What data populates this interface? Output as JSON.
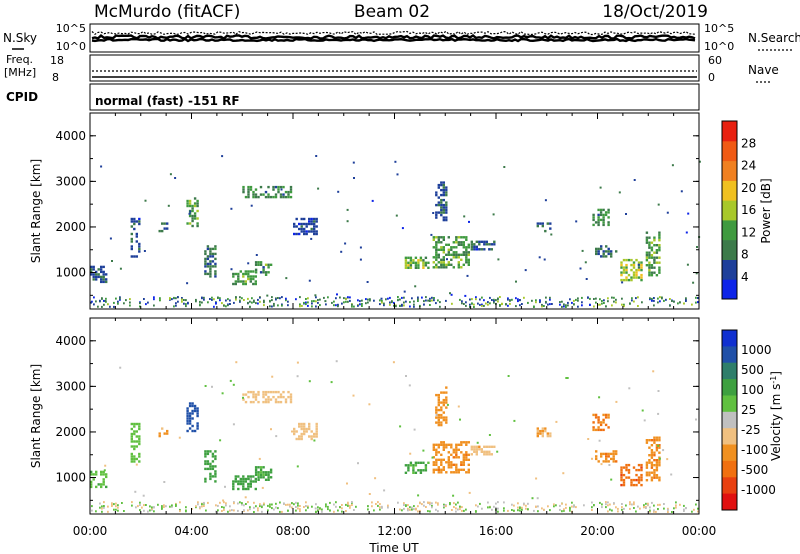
{
  "header": {
    "station": "McMurdo (fitACF)",
    "beam": "Beam 02",
    "date": "18/Oct/2019"
  },
  "left_labels": {
    "nsky": "N.Sky",
    "freq": "Freq.",
    "freq_unit": "[MHz]",
    "cpid": "CPID"
  },
  "right_labels": {
    "nsearch": "N.Search",
    "nave": "Nave"
  },
  "noise_axis": {
    "left_ticks": [
      "10^5",
      "10^0"
    ],
    "right_ticks": [
      "10^5",
      "10^0"
    ]
  },
  "freq_axis": {
    "left_ticks": [
      "18",
      "8"
    ],
    "right_ticks": [
      "60",
      "0"
    ]
  },
  "cpid_text": "normal (fast) -151 RF",
  "xaxis": {
    "title": "Time UT",
    "ticks": [
      "00:00",
      "04:00",
      "08:00",
      "12:00",
      "16:00",
      "20:00",
      "00:00"
    ]
  },
  "chart_data": [
    {
      "type": "heatmap",
      "name": "power",
      "ylabel": "Slant Range [km]",
      "yticks": [
        "1000",
        "2000",
        "3000",
        "4000"
      ],
      "ylim": [
        200,
        4500
      ],
      "xlim": [
        0,
        24
      ],
      "colorbar": {
        "label": "Power [dB]",
        "ticks": [
          "4",
          "8",
          "12",
          "16",
          "20",
          "24",
          "28"
        ],
        "colors": [
          "#0d24e8",
          "#1e3f9a",
          "#3c7a4a",
          "#3f9a3f",
          "#a8c82a",
          "#f0c020",
          "#f08020",
          "#f05a14",
          "#e82010"
        ]
      },
      "echo_regions": [
        {
          "t": [
            0.0,
            0.7
          ],
          "r": [
            750,
            1150
          ],
          "v": 7
        },
        {
          "t": [
            1.6,
            2.0
          ],
          "r": [
            1300,
            2200
          ],
          "v": 6
        },
        {
          "t": [
            2.7,
            3.1
          ],
          "r": [
            1900,
            2100
          ],
          "v": 7
        },
        {
          "t": [
            3.8,
            4.3
          ],
          "r": [
            2000,
            2650
          ],
          "v": 12
        },
        {
          "t": [
            4.5,
            5.0
          ],
          "r": [
            900,
            1600
          ],
          "v": 8
        },
        {
          "t": [
            5.6,
            6.6
          ],
          "r": [
            700,
            1050
          ],
          "v": 12
        },
        {
          "t": [
            6.5,
            7.2
          ],
          "r": [
            900,
            1250
          ],
          "v": 10
        },
        {
          "t": [
            6.0,
            8.0
          ],
          "r": [
            2600,
            2900
          ],
          "v": 10
        },
        {
          "t": [
            8.0,
            9.0
          ],
          "r": [
            1800,
            2200
          ],
          "v": 5
        },
        {
          "t": [
            12.4,
            13.4
          ],
          "r": [
            1050,
            1350
          ],
          "v": 14
        },
        {
          "t": [
            13.5,
            15.0
          ],
          "r": [
            1100,
            1800
          ],
          "v": 12
        },
        {
          "t": [
            13.6,
            14.1
          ],
          "r": [
            2100,
            3000
          ],
          "v": 6
        },
        {
          "t": [
            15.0,
            16.0
          ],
          "r": [
            1500,
            1700
          ],
          "v": 7
        },
        {
          "t": [
            17.6,
            18.2
          ],
          "r": [
            1900,
            2100
          ],
          "v": 7
        },
        {
          "t": [
            19.8,
            20.5
          ],
          "r": [
            2000,
            2400
          ],
          "v": 10
        },
        {
          "t": [
            19.9,
            20.8
          ],
          "r": [
            1300,
            1600
          ],
          "v": 7
        },
        {
          "t": [
            20.9,
            21.8
          ],
          "r": [
            800,
            1300
          ],
          "v": 16
        },
        {
          "t": [
            21.9,
            22.5
          ],
          "r": [
            900,
            1900
          ],
          "v": 12
        }
      ]
    },
    {
      "type": "heatmap",
      "name": "velocity",
      "ylabel": "Slant Range [km]",
      "yticks": [
        "1000",
        "2000",
        "3000",
        "4000"
      ],
      "ylim": [
        200,
        4500
      ],
      "xlim": [
        0,
        24
      ],
      "colorbar": {
        "label": "Velocity [m s^-1]",
        "ticks": [
          "1000",
          "500",
          "100",
          "25",
          "-25",
          "-100",
          "-500",
          "-1000"
        ],
        "colors": [
          "#1030d0",
          "#2050a8",
          "#2e7e6a",
          "#3ea040",
          "#60c040",
          "#c0c0c0",
          "#f0c080",
          "#f09020",
          "#f07010",
          "#e84010",
          "#e01010"
        ]
      },
      "echo_regions": [
        {
          "t": [
            0.0,
            0.7
          ],
          "r": [
            750,
            1150
          ],
          "v": 80
        },
        {
          "t": [
            1.6,
            2.0
          ],
          "r": [
            1300,
            2200
          ],
          "v": 40
        },
        {
          "t": [
            2.7,
            3.1
          ],
          "r": [
            1900,
            2100
          ],
          "v": -120
        },
        {
          "t": [
            3.8,
            4.3
          ],
          "r": [
            2000,
            2650
          ],
          "v": 700
        },
        {
          "t": [
            4.5,
            5.0
          ],
          "r": [
            900,
            1600
          ],
          "v": 150
        },
        {
          "t": [
            5.6,
            6.6
          ],
          "r": [
            700,
            1050
          ],
          "v": 150
        },
        {
          "t": [
            6.5,
            7.2
          ],
          "r": [
            900,
            1250
          ],
          "v": 120
        },
        {
          "t": [
            6.0,
            8.0
          ],
          "r": [
            2600,
            2900
          ],
          "v": -60
        },
        {
          "t": [
            8.0,
            9.0
          ],
          "r": [
            1800,
            2200
          ],
          "v": -50
        },
        {
          "t": [
            12.4,
            13.4
          ],
          "r": [
            1050,
            1350
          ],
          "v": 110
        },
        {
          "t": [
            13.5,
            15.0
          ],
          "r": [
            1100,
            1800
          ],
          "v": -200
        },
        {
          "t": [
            13.6,
            14.1
          ],
          "r": [
            2100,
            3000
          ],
          "v": -150
        },
        {
          "t": [
            15.0,
            16.0
          ],
          "r": [
            1500,
            1700
          ],
          "v": -80
        },
        {
          "t": [
            17.6,
            18.2
          ],
          "r": [
            1900,
            2100
          ],
          "v": -100
        },
        {
          "t": [
            19.8,
            20.5
          ],
          "r": [
            2000,
            2400
          ],
          "v": -300
        },
        {
          "t": [
            19.9,
            20.8
          ],
          "r": [
            1300,
            1600
          ],
          "v": -200
        },
        {
          "t": [
            20.9,
            21.8
          ],
          "r": [
            800,
            1300
          ],
          "v": -400
        },
        {
          "t": [
            21.9,
            22.5
          ],
          "r": [
            900,
            1900
          ],
          "v": -200
        }
      ]
    }
  ]
}
